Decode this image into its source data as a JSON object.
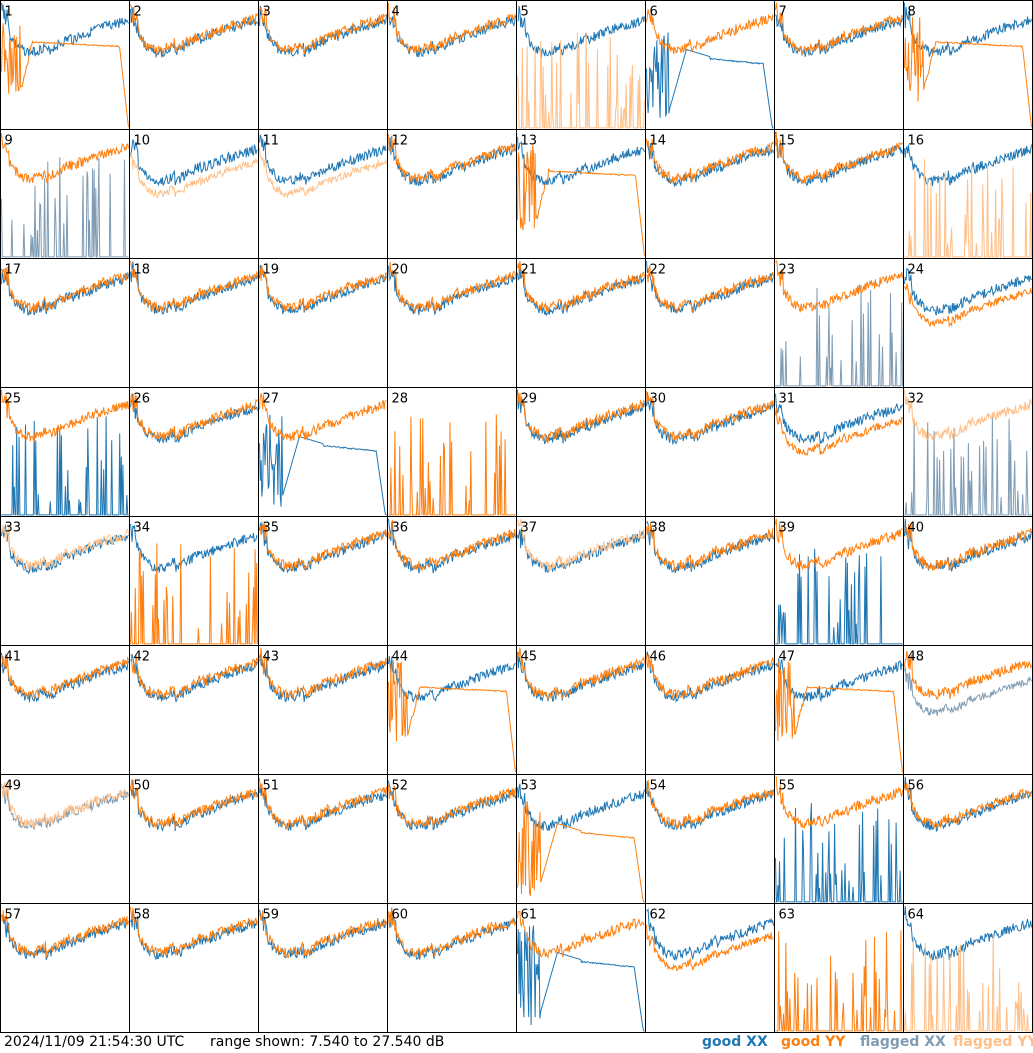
{
  "footer": {
    "timestamp": "2024/11/09 21:54:30 UTC",
    "range_text": "range shown: 7.540 to 27.540 dB"
  },
  "legend": [
    {
      "label": "good XX",
      "color": "#1f77b4"
    },
    {
      "label": "good YY",
      "color": "#ff7f0e"
    },
    {
      "label": "flagged XX",
      "color": "#7f9cb4"
    },
    {
      "label": "flagged YY",
      "color": "#ffbf87"
    }
  ],
  "chart_data": {
    "type": "line",
    "grid_cols": 8,
    "grid_rows": 8,
    "y_range_db": [
      7.54,
      27.54
    ],
    "series_names": [
      "good XX",
      "good YY",
      "flagged XX",
      "flagged YY"
    ],
    "panels": [
      {
        "label": "1",
        "xx": "normal",
        "yy": "flat_drop",
        "xxFlag": false,
        "yyFlag": false
      },
      {
        "label": "2",
        "xx": "normal",
        "yy": "normal",
        "xxFlag": false,
        "yyFlag": false
      },
      {
        "label": "3",
        "xx": "normal",
        "yy": "normal",
        "xxFlag": false,
        "yyFlag": false
      },
      {
        "label": "4",
        "xx": "normal",
        "yy": "normal",
        "xxFlag": false,
        "yyFlag": false
      },
      {
        "label": "5",
        "xx": "normal",
        "yy": "spikes",
        "xxFlag": false,
        "yyFlag": true
      },
      {
        "label": "6",
        "xx": "dip_drop",
        "yy": "normal",
        "xxFlag": false,
        "yyFlag": false
      },
      {
        "label": "7",
        "xx": "normal",
        "yy": "normal",
        "xxFlag": false,
        "yyFlag": false
      },
      {
        "label": "8",
        "xx": "normal",
        "yy": "flat_drop",
        "xxFlag": false,
        "yyFlag": false
      },
      {
        "label": "9",
        "xx": "spikes",
        "yy": "normal",
        "xxFlag": true,
        "yyFlag": false
      },
      {
        "label": "10",
        "xx": "normal",
        "yy": "low",
        "xxFlag": false,
        "yyFlag": true
      },
      {
        "label": "11",
        "xx": "normal",
        "yy": "low",
        "xxFlag": false,
        "yyFlag": true
      },
      {
        "label": "12",
        "xx": "normal",
        "yy": "normal",
        "xxFlag": false,
        "yyFlag": false
      },
      {
        "label": "13",
        "xx": "normal",
        "yy": "flat_drop",
        "xxFlag": false,
        "yyFlag": false
      },
      {
        "label": "14",
        "xx": "normal",
        "yy": "normal",
        "xxFlag": false,
        "yyFlag": false
      },
      {
        "label": "15",
        "xx": "normal",
        "yy": "normal",
        "xxFlag": false,
        "yyFlag": false
      },
      {
        "label": "16",
        "xx": "normal",
        "yy": "spikes",
        "xxFlag": false,
        "yyFlag": true
      },
      {
        "label": "17",
        "xx": "normal",
        "yy": "normal",
        "xxFlag": false,
        "yyFlag": false
      },
      {
        "label": "18",
        "xx": "normal",
        "yy": "normal",
        "xxFlag": false,
        "yyFlag": false
      },
      {
        "label": "19",
        "xx": "normal",
        "yy": "normal",
        "xxFlag": false,
        "yyFlag": false
      },
      {
        "label": "20",
        "xx": "normal",
        "yy": "normal",
        "xxFlag": false,
        "yyFlag": false
      },
      {
        "label": "21",
        "xx": "normal",
        "yy": "normal",
        "xxFlag": false,
        "yyFlag": false
      },
      {
        "label": "22",
        "xx": "normal",
        "yy": "normal",
        "xxFlag": false,
        "yyFlag": false
      },
      {
        "label": "23",
        "xx": "spikes",
        "yy": "normal",
        "xxFlag": true,
        "yyFlag": false
      },
      {
        "label": "24",
        "xx": "normal",
        "yy": "low",
        "xxFlag": false,
        "yyFlag": false
      },
      {
        "label": "25",
        "xx": "spikes",
        "yy": "normal",
        "xxFlag": false,
        "yyFlag": false
      },
      {
        "label": "26",
        "xx": "normal",
        "yy": "normal",
        "xxFlag": false,
        "yyFlag": false
      },
      {
        "label": "27",
        "xx": "dip_drop",
        "yy": "normal",
        "xxFlag": false,
        "yyFlag": false
      },
      {
        "label": "28",
        "xx": "none",
        "yy": "spikes",
        "xxFlag": false,
        "yyFlag": false
      },
      {
        "label": "29",
        "xx": "normal",
        "yy": "normal",
        "xxFlag": false,
        "yyFlag": false
      },
      {
        "label": "30",
        "xx": "normal",
        "yy": "normal",
        "xxFlag": false,
        "yyFlag": false
      },
      {
        "label": "31",
        "xx": "normal",
        "yy": "low",
        "xxFlag": false,
        "yyFlag": false
      },
      {
        "label": "32",
        "xx": "spikes",
        "yy": "normal",
        "xxFlag": true,
        "yyFlag": true
      },
      {
        "label": "33",
        "xx": "normal",
        "yy": "normal",
        "xxFlag": false,
        "yyFlag": true
      },
      {
        "label": "34",
        "xx": "normal",
        "yy": "spikes",
        "xxFlag": false,
        "yyFlag": false
      },
      {
        "label": "35",
        "xx": "normal",
        "yy": "normal",
        "xxFlag": false,
        "yyFlag": false
      },
      {
        "label": "36",
        "xx": "normal",
        "yy": "normal",
        "xxFlag": false,
        "yyFlag": false
      },
      {
        "label": "37",
        "xx": "normal",
        "yy": "normal",
        "xxFlag": false,
        "yyFlag": true
      },
      {
        "label": "38",
        "xx": "normal",
        "yy": "normal",
        "xxFlag": false,
        "yyFlag": false
      },
      {
        "label": "39",
        "xx": "spikes",
        "yy": "normal",
        "xxFlag": false,
        "yyFlag": false
      },
      {
        "label": "40",
        "xx": "normal",
        "yy": "normal",
        "xxFlag": false,
        "yyFlag": false
      },
      {
        "label": "41",
        "xx": "normal",
        "yy": "normal",
        "xxFlag": false,
        "yyFlag": false
      },
      {
        "label": "42",
        "xx": "normal",
        "yy": "normal",
        "xxFlag": false,
        "yyFlag": false
      },
      {
        "label": "43",
        "xx": "normal",
        "yy": "normal",
        "xxFlag": false,
        "yyFlag": false
      },
      {
        "label": "44",
        "xx": "normal",
        "yy": "flat_drop",
        "xxFlag": false,
        "yyFlag": false
      },
      {
        "label": "45",
        "xx": "normal",
        "yy": "normal",
        "xxFlag": false,
        "yyFlag": false
      },
      {
        "label": "46",
        "xx": "normal",
        "yy": "normal",
        "xxFlag": false,
        "yyFlag": false
      },
      {
        "label": "47",
        "xx": "normal",
        "yy": "flat_drop",
        "xxFlag": false,
        "yyFlag": false
      },
      {
        "label": "48",
        "xx": "low",
        "yy": "normal",
        "xxFlag": true,
        "yyFlag": false
      },
      {
        "label": "49",
        "xx": "normal",
        "yy": "normal",
        "xxFlag": true,
        "yyFlag": true
      },
      {
        "label": "50",
        "xx": "normal",
        "yy": "normal",
        "xxFlag": false,
        "yyFlag": false
      },
      {
        "label": "51",
        "xx": "normal",
        "yy": "normal",
        "xxFlag": false,
        "yyFlag": false
      },
      {
        "label": "52",
        "xx": "normal",
        "yy": "normal",
        "xxFlag": false,
        "yyFlag": false
      },
      {
        "label": "53",
        "xx": "normal",
        "yy": "dip_drop",
        "xxFlag": false,
        "yyFlag": false
      },
      {
        "label": "54",
        "xx": "normal",
        "yy": "normal",
        "xxFlag": false,
        "yyFlag": false
      },
      {
        "label": "55",
        "xx": "spikes",
        "yy": "normal",
        "xxFlag": false,
        "yyFlag": false
      },
      {
        "label": "56",
        "xx": "normal",
        "yy": "normal",
        "xxFlag": false,
        "yyFlag": false
      },
      {
        "label": "57",
        "xx": "normal",
        "yy": "normal",
        "xxFlag": false,
        "yyFlag": false
      },
      {
        "label": "58",
        "xx": "normal",
        "yy": "normal",
        "xxFlag": false,
        "yyFlag": false
      },
      {
        "label": "59",
        "xx": "normal",
        "yy": "normal",
        "xxFlag": false,
        "yyFlag": false
      },
      {
        "label": "60",
        "xx": "normal",
        "yy": "normal",
        "xxFlag": false,
        "yyFlag": false
      },
      {
        "label": "61",
        "xx": "dip_drop",
        "yy": "normal",
        "xxFlag": false,
        "yyFlag": false
      },
      {
        "label": "62",
        "xx": "normal",
        "yy": "low",
        "xxFlag": false,
        "yyFlag": false
      },
      {
        "label": "63",
        "xx": "none",
        "yy": "spikes",
        "xxFlag": false,
        "yyFlag": false
      },
      {
        "label": "64",
        "xx": "normal",
        "yy": "spikes",
        "xxFlag": false,
        "yyFlag": true
      }
    ]
  }
}
